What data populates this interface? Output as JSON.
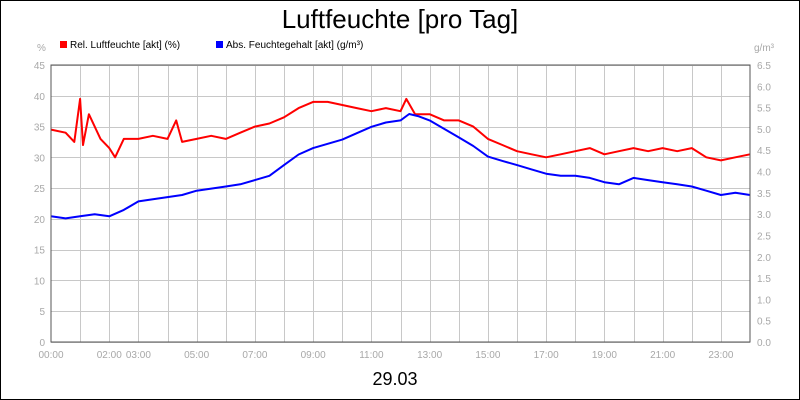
{
  "chart_data": {
    "type": "line",
    "title": "Luftfeuchte [pro Tag]",
    "date_label": "29.03",
    "y_left_unit": "%",
    "y_right_unit": "g/m³",
    "ylim_left": [
      0,
      45
    ],
    "ylim_right": [
      0.0,
      6.5
    ],
    "y_left_ticks": [
      "0",
      "5",
      "10",
      "15",
      "20",
      "25",
      "30",
      "35",
      "40",
      "45"
    ],
    "y_right_ticks": [
      "0.0",
      "0.5",
      "1.0",
      "1.5",
      "2.0",
      "2.5",
      "3.0",
      "3.5",
      "4.0",
      "4.5",
      "5.0",
      "5.5",
      "6.0",
      "6.5"
    ],
    "x_ticks": [
      {
        "hour": 0,
        "label": "00:00"
      },
      {
        "hour": 2,
        "label": "02:00"
      },
      {
        "hour": 3,
        "label": "03:00"
      },
      {
        "hour": 5,
        "label": "05:00"
      },
      {
        "hour": 7,
        "label": "07:00"
      },
      {
        "hour": 9,
        "label": "09:00"
      },
      {
        "hour": 11,
        "label": "11:00"
      },
      {
        "hour": 13,
        "label": "13:00"
      },
      {
        "hour": 15,
        "label": "15:00"
      },
      {
        "hour": 17,
        "label": "17:00"
      },
      {
        "hour": 19,
        "label": "19:00"
      },
      {
        "hour": 21,
        "label": "21:00"
      },
      {
        "hour": 23,
        "label": "23:00"
      }
    ],
    "xlim": [
      0,
      24
    ],
    "grid": true,
    "legend_position": "top-left",
    "series": [
      {
        "name": "Rel. Luftfeuchte [akt] (%)",
        "color": "#ff0000",
        "axis": "left",
        "x": [
          0.0,
          0.5,
          0.8,
          1.0,
          1.1,
          1.3,
          1.5,
          1.7,
          2.0,
          2.2,
          2.5,
          3.0,
          3.5,
          4.0,
          4.3,
          4.5,
          5.0,
          5.5,
          6.0,
          6.5,
          7.0,
          7.5,
          8.0,
          8.5,
          9.0,
          9.5,
          10.0,
          10.5,
          11.0,
          11.5,
          12.0,
          12.2,
          12.5,
          13.0,
          13.5,
          14.0,
          14.5,
          15.0,
          15.5,
          16.0,
          16.5,
          17.0,
          17.5,
          18.0,
          18.5,
          19.0,
          19.5,
          20.0,
          20.5,
          21.0,
          21.5,
          22.0,
          22.5,
          23.0,
          23.5,
          24.0
        ],
        "values": [
          34.5,
          34.0,
          32.5,
          39.5,
          32.0,
          37.0,
          35.0,
          33.0,
          31.5,
          30.0,
          33.0,
          33.0,
          33.5,
          33.0,
          36.0,
          32.5,
          33.0,
          33.5,
          33.0,
          34.0,
          35.0,
          35.5,
          36.5,
          38.0,
          39.0,
          39.0,
          38.5,
          38.0,
          37.5,
          38.0,
          37.5,
          39.5,
          37.0,
          37.0,
          36.0,
          36.0,
          35.0,
          33.0,
          32.0,
          31.0,
          30.5,
          30.0,
          30.5,
          31.0,
          31.5,
          30.5,
          31.0,
          31.5,
          31.0,
          31.5,
          31.0,
          31.5,
          30.0,
          29.5,
          30.0,
          30.5
        ]
      },
      {
        "name": "Abs. Feuchtegehalt [akt] (g/m³)",
        "color": "#0000ff",
        "axis": "right",
        "x": [
          0.0,
          0.5,
          1.0,
          1.5,
          2.0,
          2.5,
          3.0,
          3.5,
          4.0,
          4.5,
          5.0,
          5.5,
          6.0,
          6.5,
          7.0,
          7.5,
          8.0,
          8.5,
          9.0,
          9.5,
          10.0,
          10.5,
          11.0,
          11.5,
          12.0,
          12.3,
          12.6,
          13.0,
          13.5,
          14.0,
          14.5,
          15.0,
          15.5,
          16.0,
          16.5,
          17.0,
          17.5,
          18.0,
          18.5,
          19.0,
          19.5,
          20.0,
          20.5,
          21.0,
          21.5,
          22.0,
          22.5,
          23.0,
          23.5,
          24.0
        ],
        "values": [
          2.95,
          2.9,
          2.95,
          3.0,
          2.95,
          3.1,
          3.3,
          3.35,
          3.4,
          3.45,
          3.55,
          3.6,
          3.65,
          3.7,
          3.8,
          3.9,
          4.15,
          4.4,
          4.55,
          4.65,
          4.75,
          4.9,
          5.05,
          5.15,
          5.2,
          5.35,
          5.3,
          5.2,
          5.0,
          4.8,
          4.6,
          4.35,
          4.25,
          4.15,
          4.05,
          3.95,
          3.9,
          3.9,
          3.85,
          3.75,
          3.7,
          3.85,
          3.8,
          3.75,
          3.7,
          3.65,
          3.55,
          3.45,
          3.5,
          3.45
        ]
      }
    ]
  }
}
